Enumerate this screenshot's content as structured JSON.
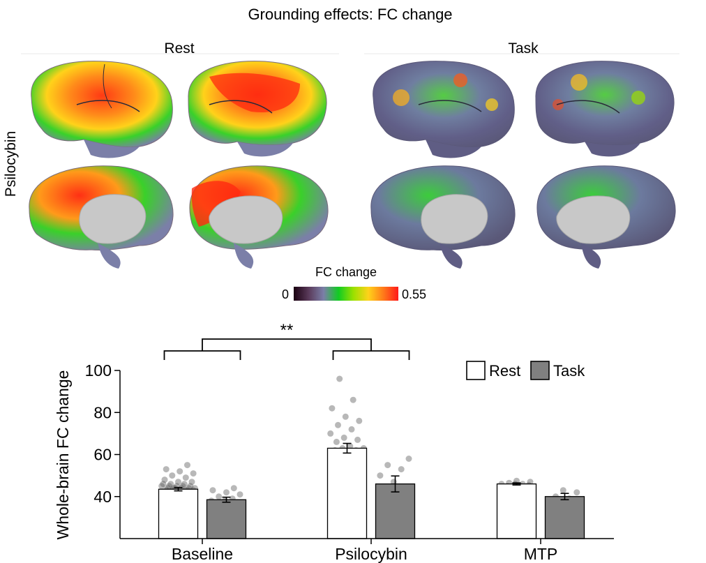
{
  "figure": {
    "title": "Grounding effects: FC change",
    "panels": [
      {
        "label": "Rest"
      },
      {
        "label": "Task"
      }
    ],
    "row_label": "Psilocybin",
    "colorbar": {
      "title": "FC change",
      "min_label": "0",
      "max_label": "0.55",
      "stops": [
        "#1a0010",
        "#5a3a5a",
        "#7b7fa8",
        "#11cc22",
        "#9be000",
        "#ffd21a",
        "#ff7a1a",
        "#ff1a1a"
      ]
    },
    "colors": {
      "rest_bar": "#ffffff",
      "task_bar": "#808080",
      "rest_map_hot": "#ff2a10",
      "rest_map_warm": "#ffb21a",
      "rest_map_green": "#22cc22",
      "task_map_gray": "#6a6a8e",
      "task_map_green": "#22cc33",
      "medial_wall": "#c8c8c8"
    }
  },
  "chart_data": {
    "type": "bar",
    "ylabel": "Whole-brain FC change",
    "xlabel": "",
    "ylim": [
      20,
      100
    ],
    "yticks": [
      40,
      60,
      80,
      100
    ],
    "yticklabels": [
      "40",
      "60",
      "80",
      "100"
    ],
    "grid": false,
    "legend": {
      "position": "top-right",
      "entries": [
        "Rest",
        "Task"
      ]
    },
    "categories": [
      "Baseline",
      "Psilocybin",
      "MTP"
    ],
    "series": [
      {
        "name": "Rest",
        "color": "#ffffff",
        "values": [
          43.5,
          63,
          46
        ],
        "errors": [
          0.8,
          2.3,
          0.5
        ],
        "points": [
          [
            38,
            39,
            40,
            40,
            41,
            41,
            41,
            42,
            42,
            42,
            42,
            43,
            43,
            43,
            43,
            43,
            43,
            44,
            44,
            44,
            44,
            44,
            44,
            45,
            45,
            45,
            45,
            45,
            46,
            46,
            46,
            47,
            47,
            48,
            49,
            50,
            51,
            52,
            53,
            55
          ],
          [
            47,
            48,
            48,
            49,
            50,
            51,
            52,
            52,
            53,
            55,
            56,
            58,
            59,
            60,
            61,
            62,
            62,
            63,
            63,
            64,
            66,
            67,
            68,
            70,
            72,
            74,
            76,
            78,
            82,
            86,
            96
          ],
          [
            44.5,
            45,
            45,
            45.5,
            46,
            46,
            46,
            46.5,
            47,
            47.5
          ]
        ]
      },
      {
        "name": "Task",
        "color": "#808080",
        "values": [
          38.5,
          46,
          40
        ],
        "errors": [
          1.2,
          3.8,
          1.5
        ],
        "points": [
          [
            33,
            35,
            36,
            37,
            38,
            38,
            39,
            40,
            41,
            42,
            43,
            44
          ],
          [
            36,
            38,
            41,
            44,
            47,
            50,
            53,
            55,
            58
          ],
          [
            37,
            39,
            40,
            42,
            43
          ]
        ]
      }
    ],
    "significance": {
      "label": "**",
      "pair": [
        "Baseline",
        "Psilocybin"
      ]
    }
  }
}
